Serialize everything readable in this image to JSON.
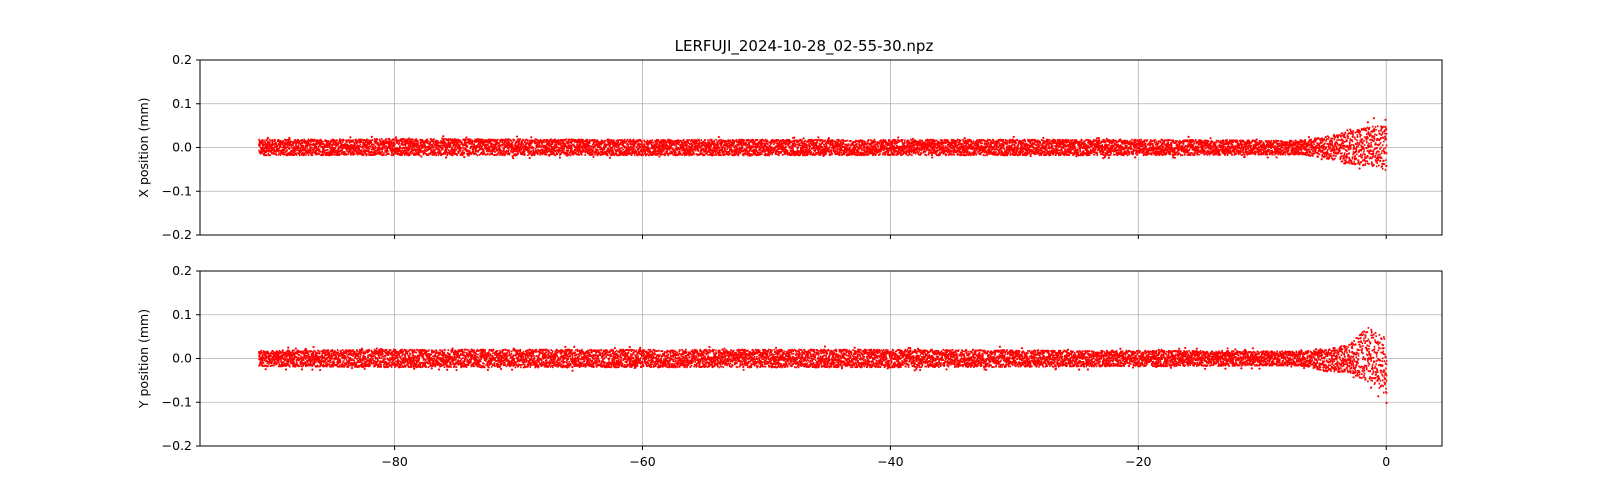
{
  "figure": {
    "title": "LERFUJI_2024-10-28_02-55-30.npz"
  },
  "chart_data": [
    {
      "type": "scatter",
      "panel": "top",
      "ylabel": "X position (mm)",
      "xlabel": "",
      "xlim": [
        -95.7,
        4.5
      ],
      "ylim": [
        -0.2,
        0.2
      ],
      "yticks": [
        0.2,
        0.1,
        0.0,
        -0.1,
        -0.2
      ],
      "ytick_labels": [
        "0.2",
        "0.1",
        "0.0",
        "−0.1",
        "−0.2"
      ],
      "xticks": [
        -80,
        -60,
        -40,
        -20,
        0
      ],
      "show_xtick_labels": false,
      "grid": true,
      "marker_color": "#ff0000",
      "series": [
        {
          "x_range": [
            -91,
            0
          ],
          "band": [
            {
              "x": -91,
              "lo": -0.022,
              "hi": 0.022
            },
            {
              "x": -80,
              "lo": -0.022,
              "hi": 0.024
            },
            {
              "x": -60,
              "lo": -0.022,
              "hi": 0.022
            },
            {
              "x": -40,
              "lo": -0.022,
              "hi": 0.022
            },
            {
              "x": -20,
              "lo": -0.022,
              "hi": 0.022
            },
            {
              "x": -7,
              "lo": -0.02,
              "hi": 0.02
            },
            {
              "x": -5,
              "lo": -0.03,
              "hi": 0.03
            },
            {
              "x": -3,
              "lo": -0.045,
              "hi": 0.045
            },
            {
              "x": -1,
              "lo": -0.055,
              "hi": 0.06
            },
            {
              "x": 0,
              "lo": -0.065,
              "hi": 0.06
            }
          ]
        }
      ]
    },
    {
      "type": "scatter",
      "panel": "bottom",
      "ylabel": "Y position (mm)",
      "xlabel": "",
      "xlim": [
        -95.7,
        4.5
      ],
      "ylim": [
        -0.2,
        0.2
      ],
      "yticks": [
        0.2,
        0.1,
        0.0,
        -0.1,
        -0.2
      ],
      "ytick_labels": [
        "0.2",
        "0.1",
        "0.0",
        "−0.1",
        "−0.2"
      ],
      "xticks": [
        -80,
        -60,
        -40,
        -20,
        0
      ],
      "xtick_labels": [
        "−80",
        "−60",
        "−40",
        "−20",
        "0"
      ],
      "show_xtick_labels": true,
      "grid": true,
      "marker_color": "#ff0000",
      "series": [
        {
          "x_range": [
            -91,
            0
          ],
          "band": [
            {
              "x": -91,
              "lo": -0.022,
              "hi": 0.022
            },
            {
              "x": -80,
              "lo": -0.025,
              "hi": 0.025
            },
            {
              "x": -60,
              "lo": -0.025,
              "hi": 0.025
            },
            {
              "x": -40,
              "lo": -0.025,
              "hi": 0.025
            },
            {
              "x": -20,
              "lo": -0.022,
              "hi": 0.022
            },
            {
              "x": -7,
              "lo": -0.02,
              "hi": 0.02
            },
            {
              "x": -5,
              "lo": -0.035,
              "hi": 0.025
            },
            {
              "x": -3,
              "lo": -0.04,
              "hi": 0.04
            },
            {
              "x": -1.5,
              "lo": -0.07,
              "hi": 0.09
            },
            {
              "x": 0,
              "lo": -0.1,
              "hi": 0.06
            }
          ]
        }
      ]
    }
  ]
}
